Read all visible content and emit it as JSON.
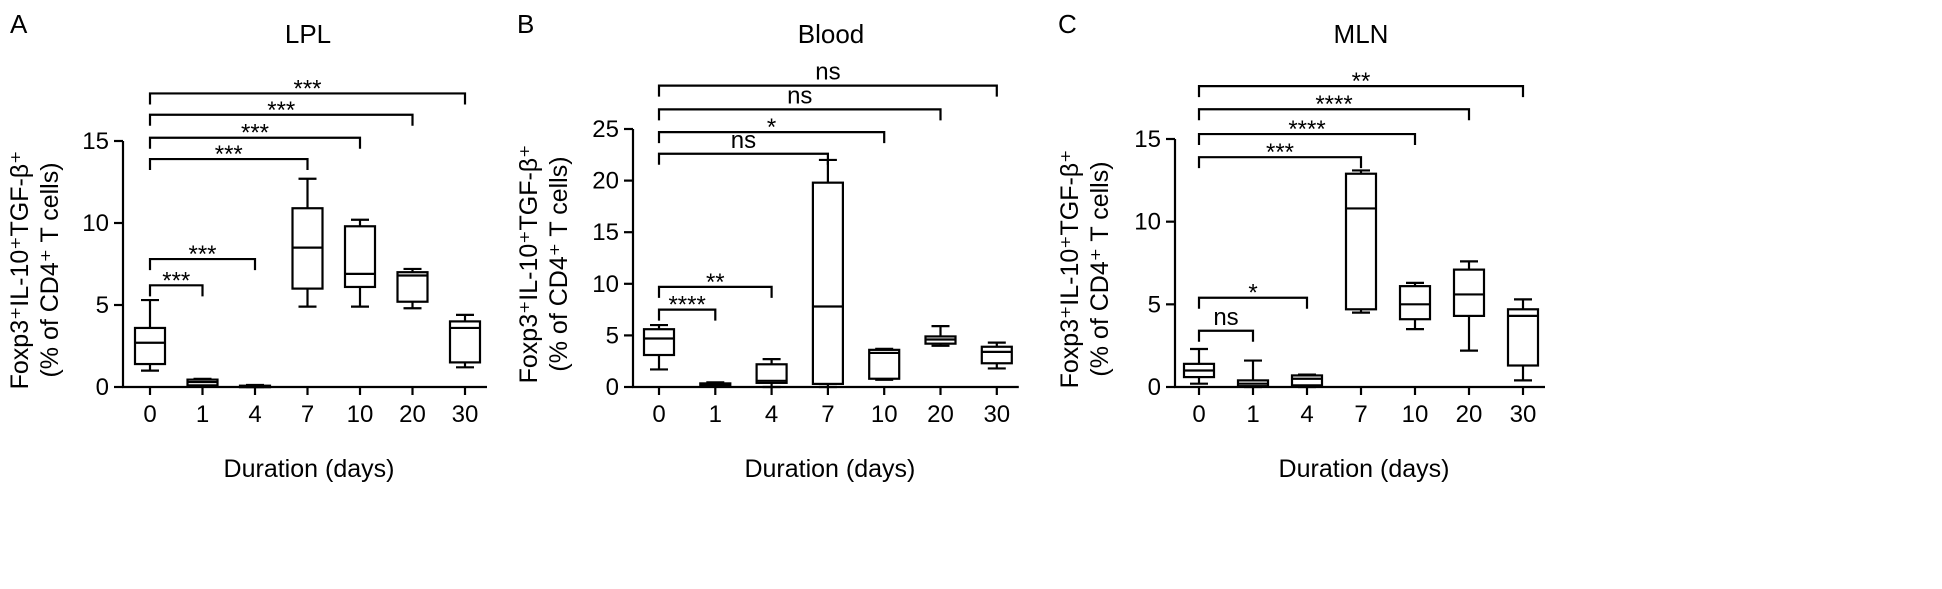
{
  "chart_data": [
    {
      "type": "box",
      "panel": "A",
      "title": "LPL",
      "xlabel": "Duration (days)",
      "ylabel_line1": "Foxp3⁺IL-10⁺TGF-β⁺",
      "ylabel_line2": "(% of CD4⁺ T cells)",
      "categories": [
        "0",
        "1",
        "4",
        "7",
        "10",
        "20",
        "30"
      ],
      "ylim": [
        0,
        15
      ],
      "yticks": [
        0,
        5,
        10,
        15
      ],
      "boxes": [
        {
          "min": 1.0,
          "q1": 1.4,
          "median": 2.7,
          "q3": 3.6,
          "max": 5.3
        },
        {
          "min": 0.05,
          "q1": 0.1,
          "median": 0.3,
          "q3": 0.45,
          "max": 0.5
        },
        {
          "min": 0.0,
          "q1": 0.02,
          "median": 0.05,
          "q3": 0.08,
          "max": 0.12
        },
        {
          "min": 4.9,
          "q1": 6.0,
          "median": 8.5,
          "q3": 10.9,
          "max": 12.7
        },
        {
          "min": 4.9,
          "q1": 6.1,
          "median": 6.9,
          "q3": 9.8,
          "max": 10.2
        },
        {
          "min": 4.8,
          "q1": 5.2,
          "median": 6.8,
          "q3": 7.0,
          "max": 7.2
        },
        {
          "min": 1.2,
          "q1": 1.5,
          "median": 3.6,
          "q3": 4.0,
          "max": 4.4
        }
      ],
      "comparisons": [
        {
          "from": 0,
          "to": 1,
          "label": "***",
          "y": 6.2
        },
        {
          "from": 0,
          "to": 2,
          "label": "***",
          "y": 7.8
        },
        {
          "from": 0,
          "to": 3,
          "label": "***",
          "y": 13.9
        },
        {
          "from": 0,
          "to": 4,
          "label": "***",
          "y": 15.2
        },
        {
          "from": 0,
          "to": 5,
          "label": "***",
          "y": 16.6
        },
        {
          "from": 0,
          "to": 6,
          "label": "***",
          "y": 17.9
        }
      ]
    },
    {
      "type": "box",
      "panel": "B",
      "title": "Blood",
      "xlabel": "Duration (days)",
      "ylabel_line1": "Foxp3⁺IL-10⁺TGF-β⁺",
      "ylabel_line2": "(% of CD4⁺ T cells)",
      "categories": [
        "0",
        "1",
        "4",
        "7",
        "10",
        "20",
        "30"
      ],
      "ylim": [
        0,
        25
      ],
      "yticks": [
        0,
        5,
        10,
        15,
        20,
        25
      ],
      "boxes": [
        {
          "min": 1.7,
          "q1": 3.1,
          "median": 4.7,
          "q3": 5.6,
          "max": 6.0
        },
        {
          "min": 0.1,
          "q1": 0.15,
          "median": 0.25,
          "q3": 0.35,
          "max": 0.45
        },
        {
          "min": 0.0,
          "q1": 0.4,
          "median": 0.6,
          "q3": 2.2,
          "max": 2.7
        },
        {
          "min": 0.0,
          "q1": 0.3,
          "median": 7.8,
          "q3": 19.8,
          "max": 22.0
        },
        {
          "min": 0.7,
          "q1": 0.8,
          "median": 3.3,
          "q3": 3.6,
          "max": 3.7
        },
        {
          "min": 4.0,
          "q1": 4.2,
          "median": 4.6,
          "q3": 4.9,
          "max": 5.9
        },
        {
          "min": 1.8,
          "q1": 2.3,
          "median": 3.4,
          "q3": 3.9,
          "max": 4.3
        }
      ],
      "comparisons": [
        {
          "from": 0,
          "to": 1,
          "label": "****",
          "y": 7.5
        },
        {
          "from": 0,
          "to": 2,
          "label": "**",
          "y": 9.7
        },
        {
          "from": 0,
          "to": 3,
          "label": "ns",
          "y": 22.6
        },
        {
          "from": 0,
          "to": 4,
          "label": "*",
          "y": 24.7
        },
        {
          "from": 0,
          "to": 5,
          "label": "ns",
          "y": 26.9
        },
        {
          "from": 0,
          "to": 6,
          "label": "ns",
          "y": 29.2
        }
      ]
    },
    {
      "type": "box",
      "panel": "C",
      "title": "MLN",
      "xlabel": "Duration (days)",
      "ylabel_line1": "Foxp3⁺IL-10⁺TGF-β⁺",
      "ylabel_line2": "(% of CD4⁺ T cells)",
      "categories": [
        "0",
        "1",
        "4",
        "7",
        "10",
        "20",
        "30"
      ],
      "ylim": [
        0,
        15
      ],
      "yticks": [
        0,
        5,
        10,
        15
      ],
      "boxes": [
        {
          "min": 0.2,
          "q1": 0.6,
          "median": 1.0,
          "q3": 1.4,
          "max": 2.3
        },
        {
          "min": 0.0,
          "q1": 0.05,
          "median": 0.2,
          "q3": 0.4,
          "max": 1.6
        },
        {
          "min": 0.0,
          "q1": 0.1,
          "median": 0.5,
          "q3": 0.7,
          "max": 0.75
        },
        {
          "min": 4.5,
          "q1": 4.7,
          "median": 10.8,
          "q3": 12.9,
          "max": 13.1
        },
        {
          "min": 3.5,
          "q1": 4.1,
          "median": 5.0,
          "q3": 6.1,
          "max": 6.3
        },
        {
          "min": 2.2,
          "q1": 4.3,
          "median": 5.6,
          "q3": 7.1,
          "max": 7.6
        },
        {
          "min": 0.4,
          "q1": 1.3,
          "median": 4.3,
          "q3": 4.7,
          "max": 5.3
        }
      ],
      "comparisons": [
        {
          "from": 0,
          "to": 1,
          "label": "ns",
          "y": 3.4
        },
        {
          "from": 0,
          "to": 2,
          "label": "*",
          "y": 5.4
        },
        {
          "from": 0,
          "to": 3,
          "label": "***",
          "y": 13.9
        },
        {
          "from": 0,
          "to": 4,
          "label": "****",
          "y": 15.3
        },
        {
          "from": 0,
          "to": 5,
          "label": "****",
          "y": 16.8
        },
        {
          "from": 0,
          "to": 6,
          "label": "**",
          "y": 18.2
        }
      ]
    }
  ]
}
